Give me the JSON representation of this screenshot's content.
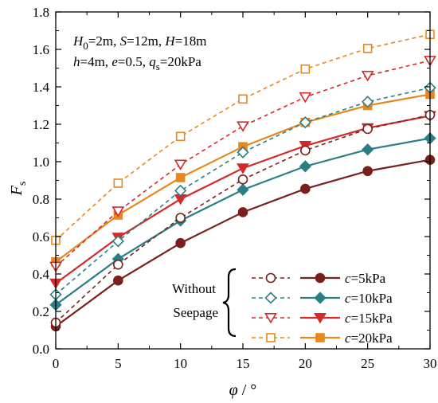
{
  "chart_data": {
    "type": "line",
    "xlabel_symbol": "φ",
    "xlabel_unit": " / °",
    "ylabel_main": "F",
    "ylabel_sub": "s",
    "xlim": [
      0,
      30
    ],
    "ylim": [
      0.0,
      1.8
    ],
    "x_ticks": [
      0,
      5,
      10,
      15,
      20,
      25,
      30
    ],
    "y_ticks": [
      0.0,
      0.2,
      0.4,
      0.6,
      0.8,
      1.0,
      1.2,
      1.4,
      1.6,
      1.8
    ],
    "x": [
      0,
      5,
      10,
      15,
      20,
      25,
      30
    ],
    "grid": false,
    "legend_position": "bottom-right",
    "parameters": {
      "line1": [
        {
          "sym": "H",
          "sub": "0",
          "val": "=2m, "
        },
        {
          "sym": "S",
          "sub": "",
          "val": "=12m, "
        },
        {
          "sym": "H",
          "sub": "",
          "val": "=18m"
        }
      ],
      "line2": [
        {
          "sym": "h",
          "sub": "",
          "val": "=4m, "
        },
        {
          "sym": "e",
          "sub": "",
          "val": "=0.5, "
        },
        {
          "sym": "q",
          "sub": "s",
          "val": "=20kPa"
        }
      ]
    },
    "group_label_lines": [
      "Without",
      "Seepage"
    ],
    "series": [
      {
        "name": "c=5kPa",
        "label_sym": "c",
        "label_val": "=5kPa",
        "color": "#7B1F1A",
        "seepage": true,
        "marker": "circle",
        "values": [
          0.12,
          0.365,
          0.565,
          0.73,
          0.855,
          0.95,
          1.01
        ]
      },
      {
        "name": "c=10kPa",
        "label_sym": "c",
        "label_val": "=10kPa",
        "color": "#2A7F86",
        "seepage": true,
        "marker": "diamond",
        "values": [
          0.235,
          0.48,
          0.685,
          0.85,
          0.975,
          1.065,
          1.125
        ]
      },
      {
        "name": "c=15kPa",
        "label_sym": "c",
        "label_val": "=15kPa",
        "color": "#D42A2A",
        "seepage": true,
        "marker": "triangle",
        "values": [
          0.35,
          0.595,
          0.8,
          0.965,
          1.085,
          1.18,
          1.245
        ]
      },
      {
        "name": "c=20kPa",
        "label_sym": "c",
        "label_val": "=20kPa",
        "color": "#E8871A",
        "seepage": true,
        "marker": "square",
        "values": [
          0.465,
          0.715,
          0.915,
          1.08,
          1.21,
          1.3,
          1.36
        ]
      },
      {
        "name": "c=5kPa",
        "color": "#7B1F1A",
        "seepage": false,
        "marker": "circle",
        "values": [
          0.14,
          0.45,
          0.7,
          0.905,
          1.06,
          1.175,
          1.25
        ]
      },
      {
        "name": "c=10kPa",
        "color": "#2A7F86",
        "seepage": false,
        "marker": "diamond",
        "values": [
          0.29,
          0.575,
          0.845,
          1.05,
          1.21,
          1.32,
          1.395
        ]
      },
      {
        "name": "c=15kPa",
        "color": "#D42A2A",
        "seepage": false,
        "marker": "triangle",
        "values": [
          0.44,
          0.735,
          0.985,
          1.19,
          1.345,
          1.46,
          1.54
        ]
      },
      {
        "name": "c=20kPa",
        "color": "#E8871A",
        "seepage": false,
        "marker": "square",
        "values": [
          0.58,
          0.885,
          1.135,
          1.335,
          1.495,
          1.605,
          1.68
        ]
      }
    ]
  }
}
